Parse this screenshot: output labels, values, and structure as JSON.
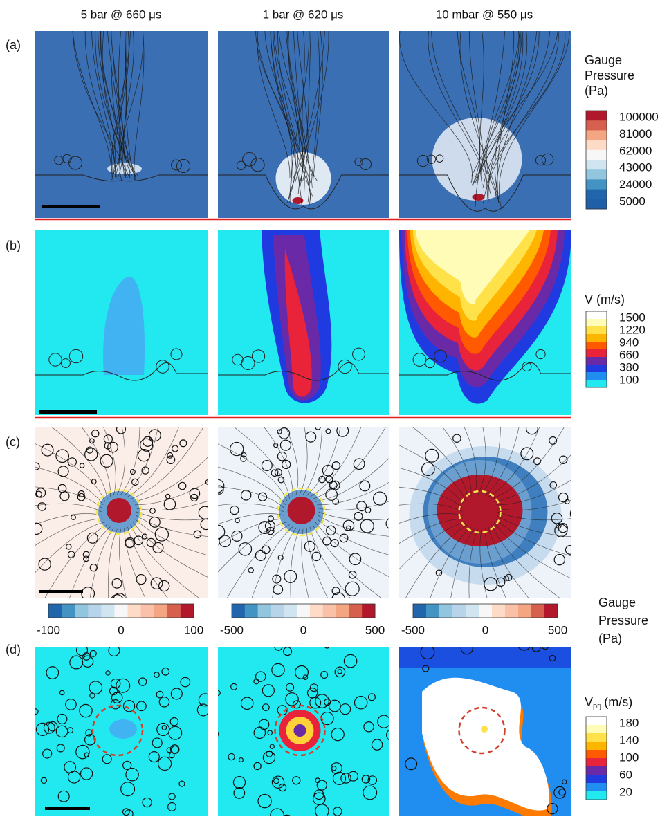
{
  "columns": [
    "5 bar @ 660 μs",
    "1 bar @ 620 μs",
    "10 mbar @ 550 μs"
  ],
  "rows": [
    {
      "label": "(a)",
      "legend": {
        "title": [
          "Gauge",
          "Pressure",
          "(Pa)"
        ],
        "ticks": [
          "100000",
          "81000",
          "62000",
          "43000",
          "24000",
          "5000"
        ]
      }
    },
    {
      "label": "(b)",
      "legend": {
        "title": [
          "V (m/s)"
        ],
        "ticks": [
          "1500",
          "1220",
          "940",
          "660",
          "380",
          "100"
        ]
      }
    },
    {
      "label": "(c)",
      "legend": {
        "title": [
          "Gauge",
          "Pressure",
          "(Pa)"
        ]
      },
      "colorbars": [
        [
          "-100",
          "0",
          "100"
        ],
        [
          "-500",
          "0",
          "500"
        ],
        [
          "-500",
          "0",
          "500"
        ]
      ]
    },
    {
      "label": "(d)",
      "legend": {
        "title": [
          "V",
          "prj",
          "(m/s)"
        ],
        "ticks": [
          "180",
          "140",
          "100",
          "60",
          "20"
        ]
      }
    }
  ]
}
